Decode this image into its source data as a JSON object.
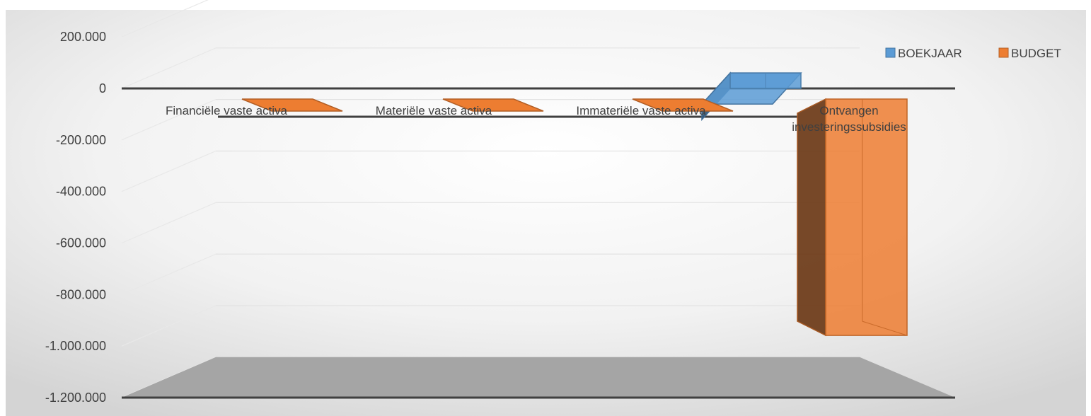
{
  "chart_data": {
    "type": "bar",
    "three_d": true,
    "categories": [
      [
        "Financiële vaste activa"
      ],
      [
        "Materiële vaste activa"
      ],
      [
        "Immateriële vaste activa"
      ],
      [
        "Ontvangen",
        "investeringssubsidies"
      ]
    ],
    "series": [
      {
        "name": "BOEKJAAR",
        "color": "#5B9BD5",
        "values": [
          0,
          0,
          0,
          60000
        ]
      },
      {
        "name": "BUDGET",
        "color": "#ED7D31",
        "values": [
          -5000,
          -5000,
          -5000,
          -1030000
        ]
      }
    ],
    "yticks": [
      "200.000",
      "0",
      "-200.000",
      "-400.000",
      "-600.000",
      "-800.000",
      "-1.000.000",
      "-1.200.000"
    ],
    "ylim": [
      -1200000,
      200000
    ],
    "gridlines": true,
    "legend_position": "top-right"
  }
}
